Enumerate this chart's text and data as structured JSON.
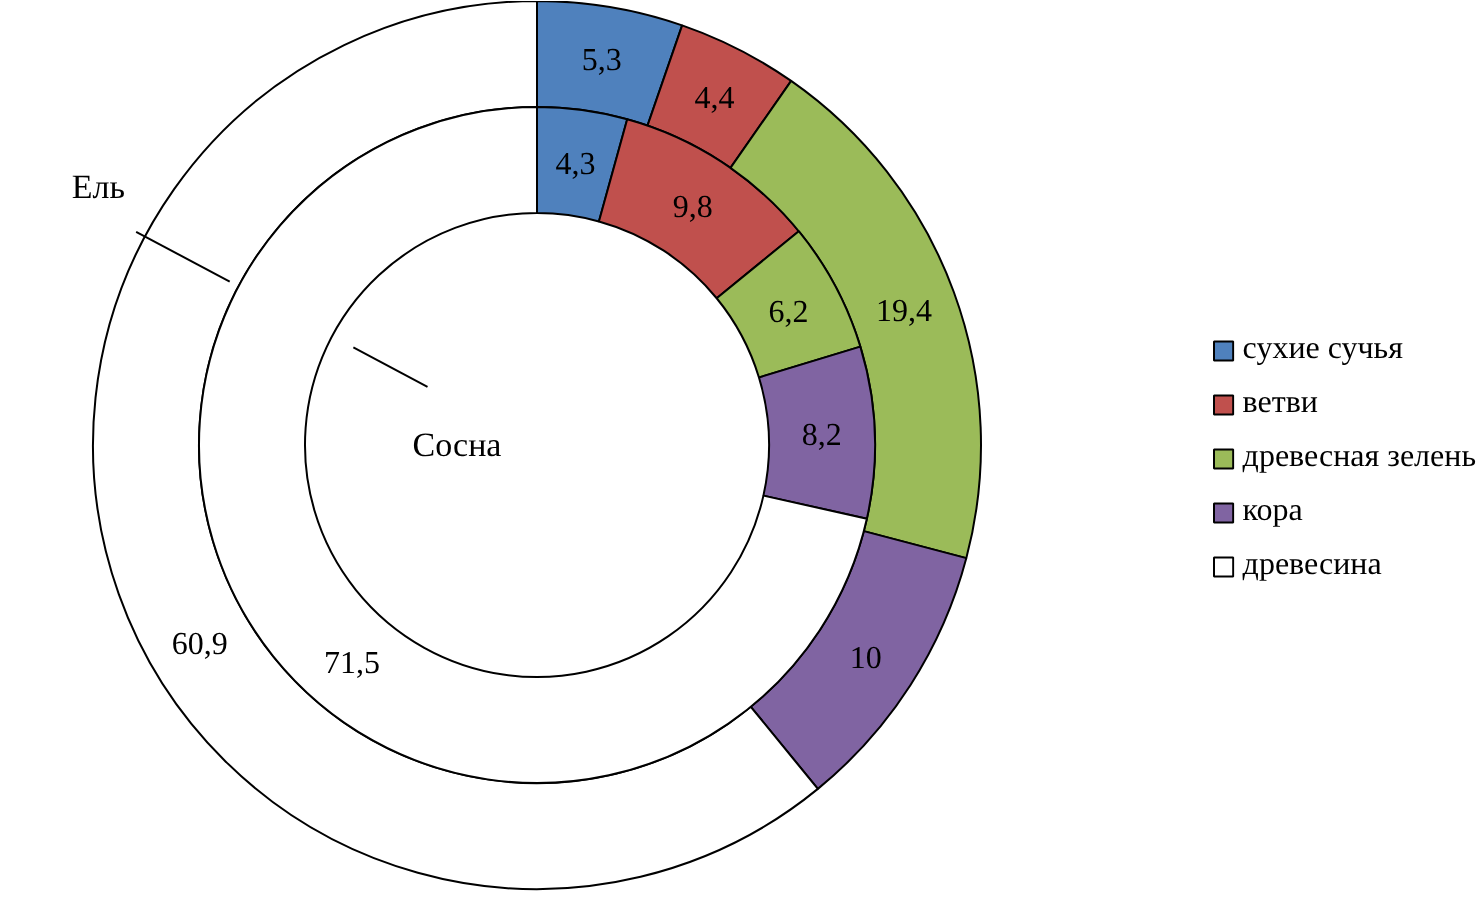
{
  "chart_data": {
    "type": "donut",
    "categories": [
      "сухие сучья",
      "ветви",
      "древесная зелень",
      "кора",
      "древесина"
    ],
    "colors": [
      "#4f81bd",
      "#c0504d",
      "#9bbb59",
      "#8064a2",
      "#ffffff"
    ],
    "series": [
      {
        "name": "Ель",
        "values": [
          5.3,
          4.4,
          19.4,
          10,
          60.9
        ],
        "value_labels": [
          "5,3",
          "4,4",
          "19,4",
          "10",
          "60,9"
        ]
      },
      {
        "name": "Сосна",
        "values": [
          4.3,
          9.8,
          6.2,
          8.2,
          71.5
        ],
        "value_labels": [
          "4,3",
          "9,8",
          "6,2",
          "8,2",
          "71,5"
        ]
      }
    ],
    "legend": "right"
  }
}
